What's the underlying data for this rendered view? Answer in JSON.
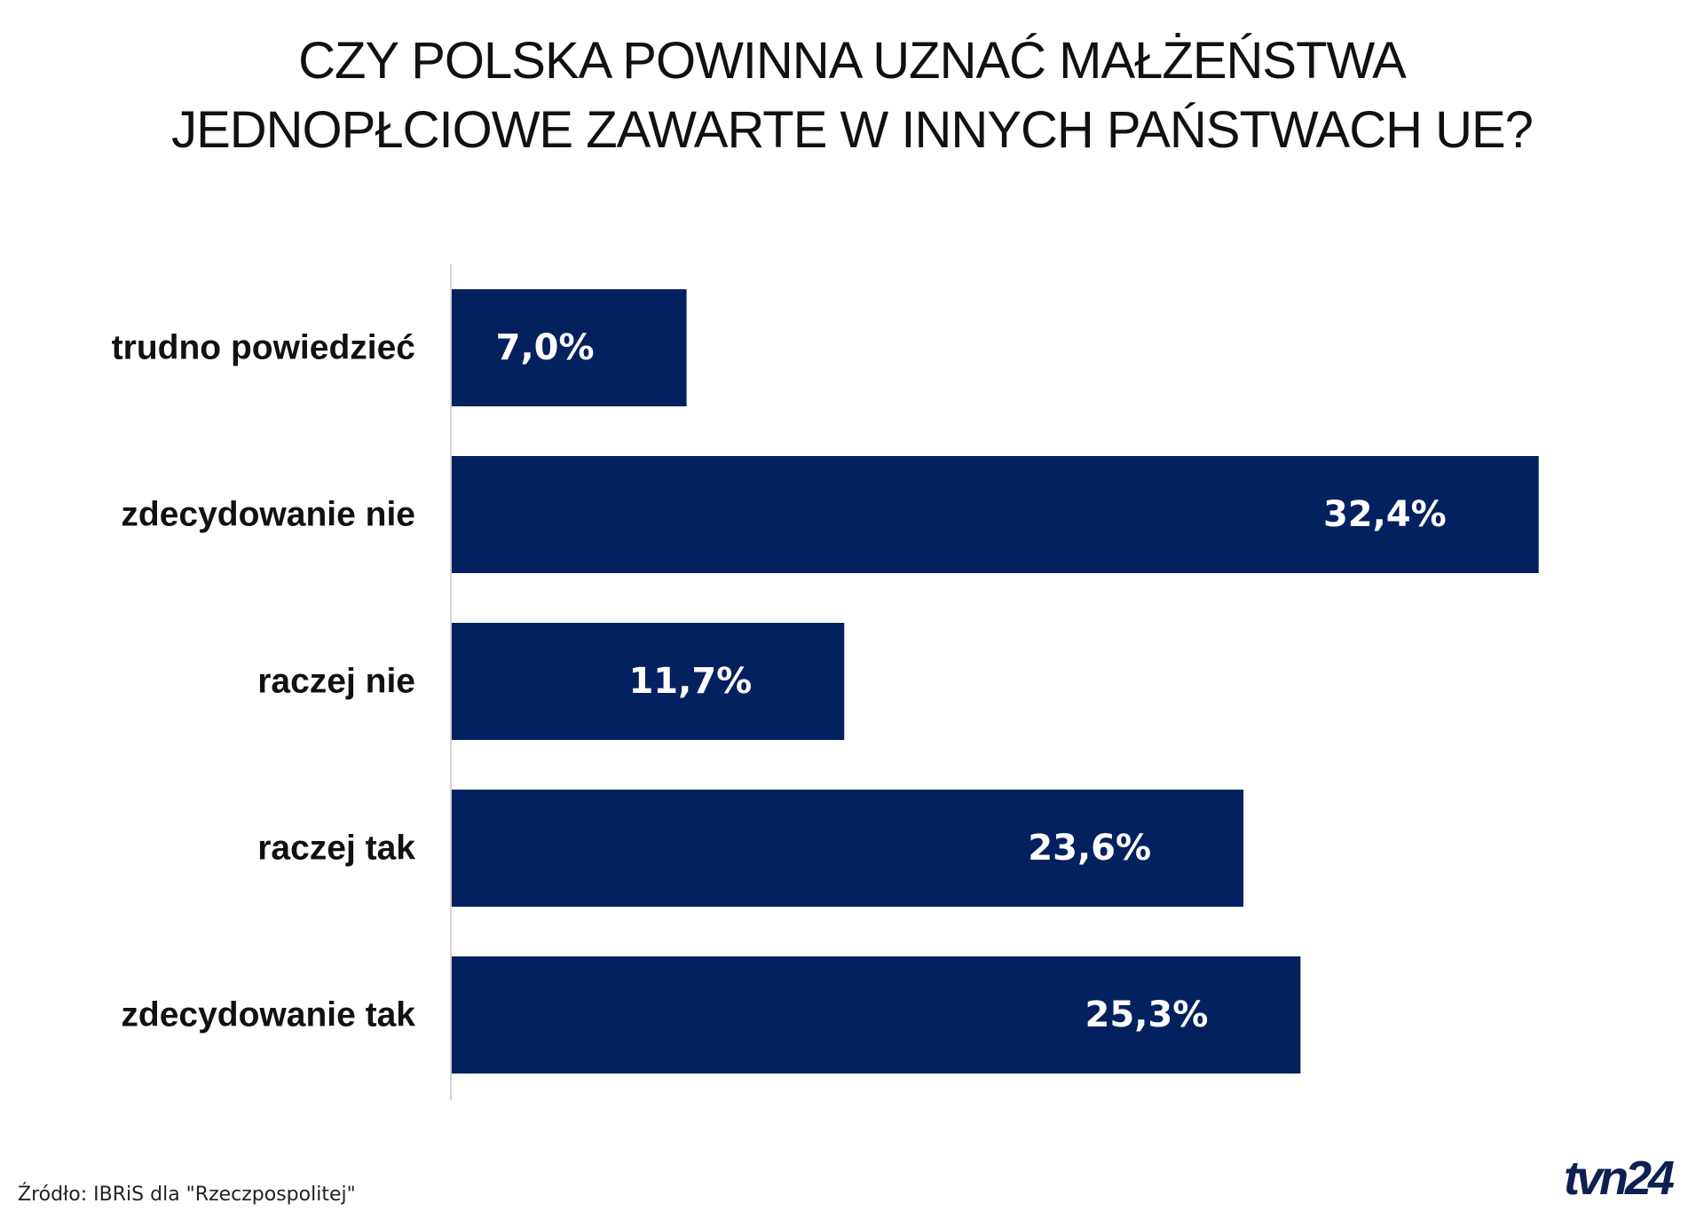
{
  "chart_data": {
    "type": "bar",
    "orientation": "horizontal",
    "title_lines": [
      "CZY POLSKA POWINNA UZNAĆ MAŁŻEŃSTWA",
      "JEDNOPŁCIOWE ZAWARTE W INNYCH PAŃSTWACH UE?"
    ],
    "categories": [
      "trudno powiedzieć",
      "zdecydowanie nie",
      "raczej nie",
      "raczej tak",
      "zdecydowanie tak"
    ],
    "values": [
      7.0,
      32.4,
      11.7,
      23.6,
      25.3
    ],
    "value_labels": [
      "7,0%",
      "32,4%",
      "11,7%",
      "23,6%",
      "25,3%"
    ],
    "bar_color": "#03215f",
    "label_color": "#ffffff",
    "grid": false
  },
  "source": "Źródło: IBRiS dla \"Rzeczpospolitej\"",
  "logo": {
    "text": "tvn24",
    "color": "#0d2150"
  }
}
